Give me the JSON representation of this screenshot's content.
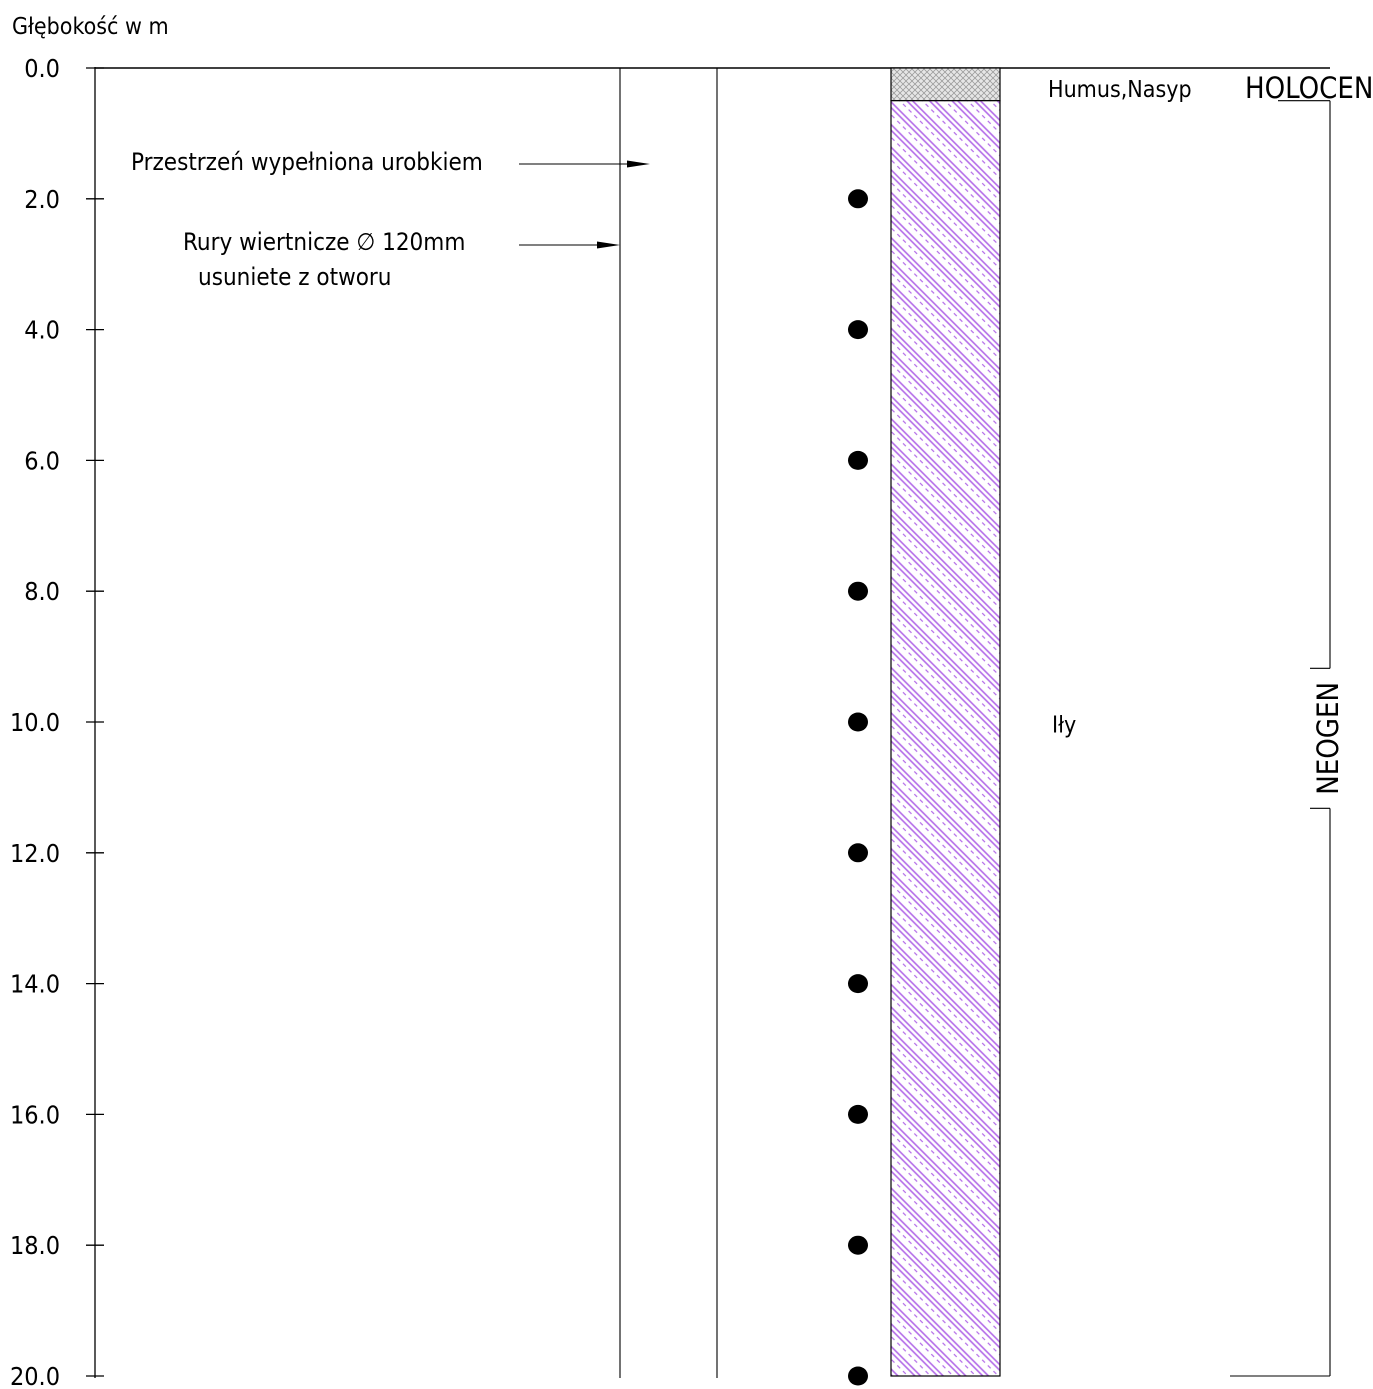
{
  "header": {
    "depth_axis_title": "Głębokość  w  m"
  },
  "chart_data": {
    "type": "borehole-log",
    "depth_unit": "m",
    "depth_range": [
      0.0,
      20.0
    ],
    "tick_labels": [
      "0.0",
      "2.0",
      "4.0",
      "6.0",
      "8.0",
      "10.0",
      "12.0",
      "14.0",
      "16.0",
      "18.0",
      "20.0"
    ],
    "ticks": [
      0,
      2,
      4,
      6,
      8,
      10,
      12,
      14,
      16,
      18,
      20
    ],
    "layers": [
      {
        "name": "Humus,Nasyp",
        "top": 0.0,
        "bottom": 0.5,
        "pattern": "fill-grey"
      },
      {
        "name": "Iły",
        "top": 0.5,
        "bottom": 20.0,
        "pattern": "clay-purple-hatch"
      }
    ],
    "samples_depths": [
      2,
      4,
      6,
      8,
      10,
      12,
      14,
      16,
      18,
      20
    ],
    "stratigraphy": [
      {
        "name": "HOLOCEN",
        "top": 0.0,
        "bottom": 0.5
      },
      {
        "name": "NEOGEN",
        "top": 0.5,
        "bottom": 20.0
      }
    ],
    "colors": {
      "clay_hatch": "#b36be8",
      "fill_grey": "#c8c8c8",
      "line": "#000000"
    }
  },
  "annotations": {
    "fill_label": "Przestrzeń  wypełniona  urobkiem",
    "casing_label_line1": "Rury  wiertnicze  ∅  120mm",
    "casing_label_line2": "usuniete  z  otworu"
  }
}
